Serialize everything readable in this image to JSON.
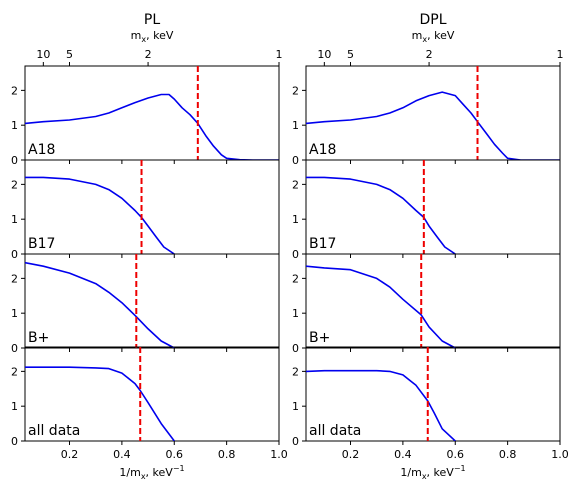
{
  "chart_data": {
    "type": "line",
    "columns": [
      {
        "title": "PL",
        "top_axis_label": "m_x, keV",
        "bottom_axis_label": "1/m_x, keV^-1"
      },
      {
        "title": "DPL",
        "top_axis_label": "m_x, keV",
        "bottom_axis_label": "1/m_x, keV^-1"
      }
    ],
    "top_axis": {
      "ticks": [
        10,
        5,
        2,
        1
      ],
      "tick_labels": [
        "10",
        "5",
        "2",
        "1"
      ]
    },
    "x_axis": {
      "xlim": [
        0.03,
        1.0
      ],
      "ticks": [
        0.2,
        0.4,
        0.6,
        0.8,
        1.0
      ],
      "tick_labels": [
        "0.2",
        "0.4",
        "0.6",
        "0.8",
        "1.0"
      ]
    },
    "y_axis": {
      "ylim": [
        0,
        2.7
      ],
      "ticks": [
        0,
        1,
        2
      ],
      "tick_labels": [
        "0",
        "1",
        "2"
      ]
    },
    "line_color": "#0000ee",
    "marker_color": "#ee0000",
    "panels": [
      {
        "column": 0,
        "row": 0,
        "label": "A18",
        "marker_x": 0.69,
        "x": [
          0.03,
          0.1,
          0.2,
          0.3,
          0.35,
          0.4,
          0.45,
          0.5,
          0.55,
          0.58,
          0.6,
          0.63,
          0.66,
          0.69,
          0.72,
          0.75,
          0.78,
          0.8,
          0.85,
          0.9,
          1.0
        ],
        "y": [
          1.05,
          1.1,
          1.15,
          1.25,
          1.35,
          1.5,
          1.65,
          1.78,
          1.88,
          1.88,
          1.75,
          1.5,
          1.3,
          1.05,
          0.7,
          0.4,
          0.15,
          0.05,
          0.01,
          0.0,
          0.0
        ]
      },
      {
        "column": 0,
        "row": 1,
        "label": "B17",
        "marker_x": 0.475,
        "x": [
          0.03,
          0.1,
          0.2,
          0.3,
          0.35,
          0.4,
          0.45,
          0.475,
          0.5,
          0.53,
          0.56,
          0.6
        ],
        "y": [
          2.2,
          2.2,
          2.15,
          2.0,
          1.85,
          1.6,
          1.25,
          1.05,
          0.8,
          0.5,
          0.2,
          0.0
        ]
      },
      {
        "column": 0,
        "row": 2,
        "label": "B+",
        "marker_x": 0.455,
        "x": [
          0.03,
          0.1,
          0.2,
          0.3,
          0.35,
          0.4,
          0.455,
          0.5,
          0.55,
          0.6
        ],
        "y": [
          2.45,
          2.35,
          2.15,
          1.85,
          1.6,
          1.3,
          0.9,
          0.55,
          0.2,
          0.0
        ]
      },
      {
        "column": 0,
        "row": 3,
        "label": "all data",
        "marker_x": 0.47,
        "x": [
          0.03,
          0.1,
          0.2,
          0.3,
          0.35,
          0.4,
          0.45,
          0.47,
          0.5,
          0.55,
          0.6
        ],
        "y": [
          2.12,
          2.12,
          2.12,
          2.1,
          2.08,
          1.95,
          1.65,
          1.45,
          1.1,
          0.5,
          0.0
        ]
      },
      {
        "column": 1,
        "row": 0,
        "label": "A18",
        "marker_x": 0.685,
        "x": [
          0.03,
          0.1,
          0.2,
          0.3,
          0.35,
          0.4,
          0.45,
          0.5,
          0.55,
          0.6,
          0.63,
          0.66,
          0.685,
          0.72,
          0.75,
          0.78,
          0.8,
          0.85,
          1.0
        ],
        "y": [
          1.05,
          1.1,
          1.15,
          1.25,
          1.35,
          1.5,
          1.7,
          1.85,
          1.95,
          1.85,
          1.6,
          1.35,
          1.1,
          0.75,
          0.45,
          0.2,
          0.05,
          0.0,
          0.0
        ]
      },
      {
        "column": 1,
        "row": 1,
        "label": "B17",
        "marker_x": 0.48,
        "x": [
          0.03,
          0.1,
          0.2,
          0.3,
          0.35,
          0.4,
          0.45,
          0.48,
          0.5,
          0.53,
          0.56,
          0.6
        ],
        "y": [
          2.2,
          2.2,
          2.15,
          2.0,
          1.85,
          1.6,
          1.25,
          1.05,
          0.8,
          0.5,
          0.2,
          0.0
        ]
      },
      {
        "column": 1,
        "row": 2,
        "label": "B+",
        "marker_x": 0.47,
        "x": [
          0.03,
          0.1,
          0.2,
          0.3,
          0.35,
          0.4,
          0.47,
          0.5,
          0.55,
          0.6
        ],
        "y": [
          2.35,
          2.3,
          2.25,
          2.0,
          1.75,
          1.4,
          0.95,
          0.6,
          0.2,
          0.0
        ]
      },
      {
        "column": 1,
        "row": 3,
        "label": "all data",
        "marker_x": 0.495,
        "x": [
          0.03,
          0.1,
          0.2,
          0.3,
          0.35,
          0.4,
          0.45,
          0.495,
          0.52,
          0.55,
          0.6
        ],
        "y": [
          2.0,
          2.02,
          2.02,
          2.02,
          2.0,
          1.9,
          1.6,
          1.15,
          0.8,
          0.35,
          0.0
        ]
      }
    ]
  }
}
